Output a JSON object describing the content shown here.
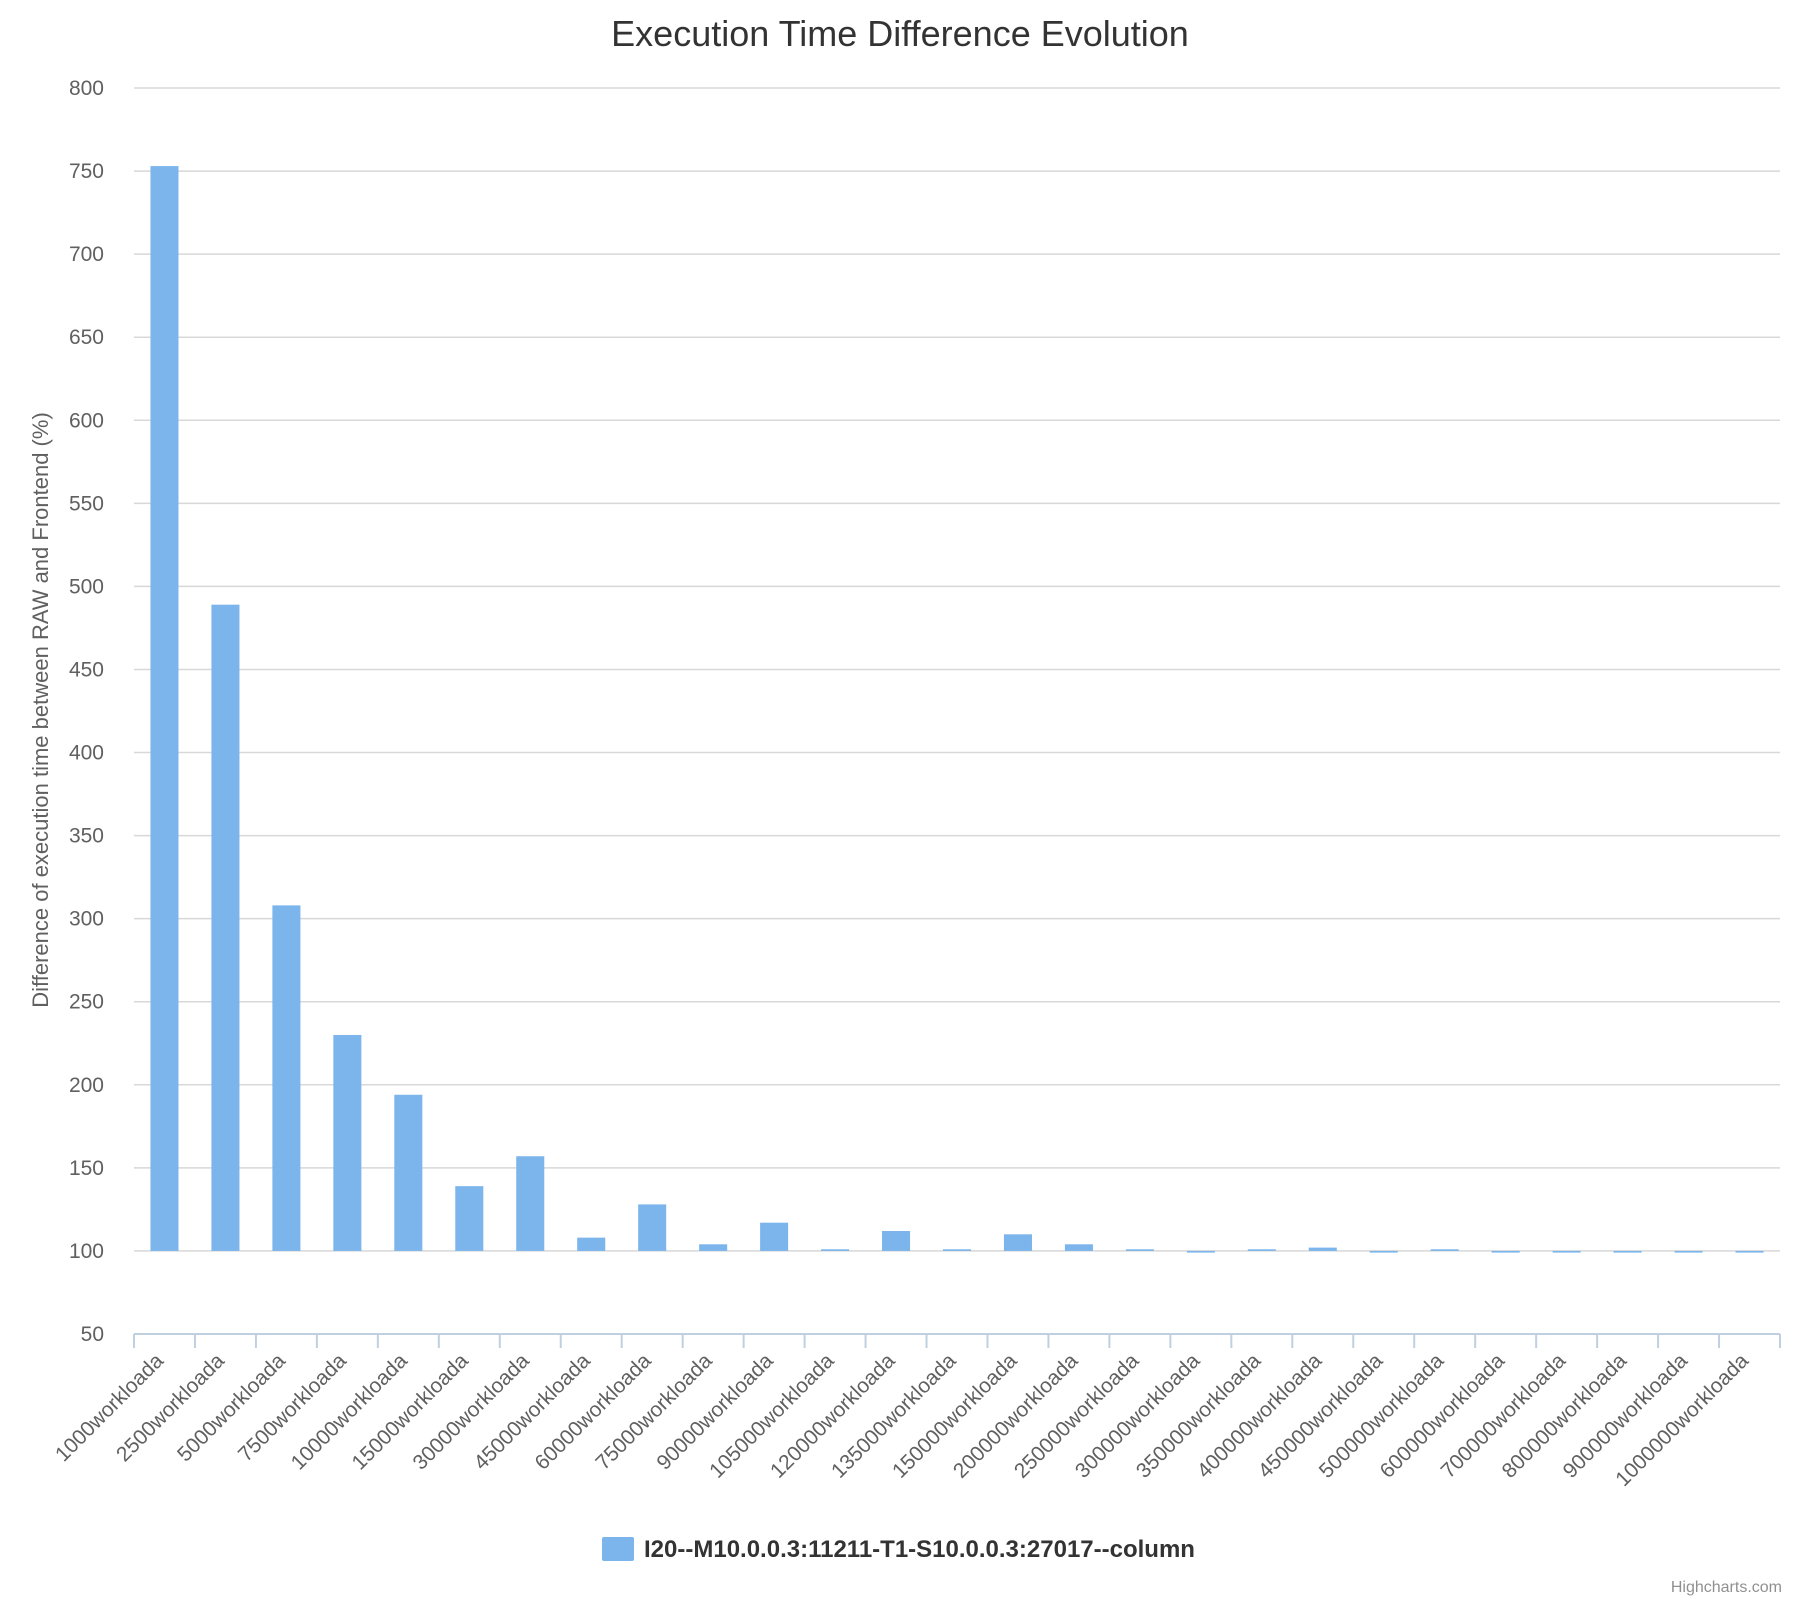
{
  "chart_data": {
    "type": "bar",
    "title": "Execution Time Difference Evolution",
    "xlabel": "",
    "ylabel": "Difference of execution time between RAW and Frontend (%)",
    "ylim": [
      50,
      800
    ],
    "yticks": [
      50,
      100,
      150,
      200,
      250,
      300,
      350,
      400,
      450,
      500,
      550,
      600,
      650,
      700,
      750,
      800
    ],
    "baseline": 100,
    "grid": true,
    "legend_position": "bottom-center",
    "categories": [
      "1000workloada",
      "2500workloada",
      "5000workloada",
      "7500workloada",
      "10000workloada",
      "15000workloada",
      "30000workloada",
      "45000workloada",
      "60000workloada",
      "75000workloada",
      "90000workloada",
      "105000workloada",
      "120000workloada",
      "135000workloada",
      "150000workloada",
      "200000workloada",
      "250000workloada",
      "300000workloada",
      "350000workloada",
      "400000workloada",
      "450000workloada",
      "500000workloada",
      "600000workloada",
      "700000workloada",
      "800000workloada",
      "900000workloada",
      "1000000workloada"
    ],
    "series": [
      {
        "name": "I20--M10.0.0.3:11211-T1-S10.0.0.3:27017--column",
        "color": "#7cb5ec",
        "values": [
          753,
          489,
          308,
          230,
          194,
          139,
          157,
          108,
          128,
          104,
          117,
          101,
          112,
          101,
          110,
          104,
          101,
          99,
          101,
          102,
          99,
          101,
          99,
          99,
          99,
          99,
          99
        ]
      }
    ]
  },
  "credits": "Highcharts.com",
  "colors": {
    "grid": "#d8d8d8",
    "axis": "#c0d0e0",
    "bar": "#7cb5ec"
  }
}
